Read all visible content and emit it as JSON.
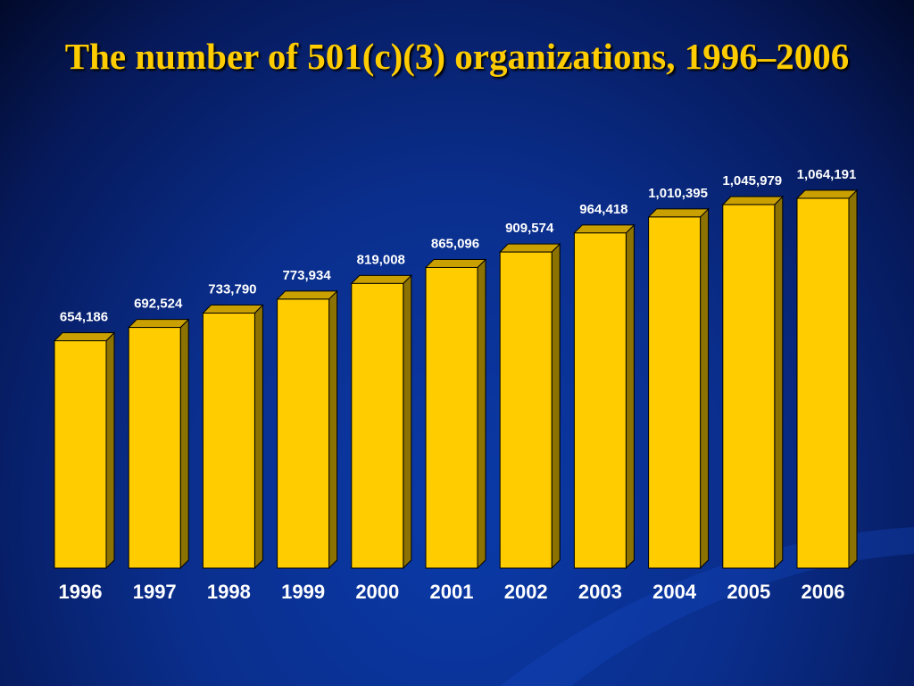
{
  "chart_data": {
    "type": "bar",
    "title": "The number of 501(c)(3) organizations, 1996–2006",
    "categories": [
      "1996",
      "1997",
      "1998",
      "1999",
      "2000",
      "2001",
      "2002",
      "2003",
      "2004",
      "2005",
      "2006"
    ],
    "values": [
      654186,
      692524,
      733790,
      773934,
      819008,
      865096,
      909574,
      964418,
      1010395,
      1045979,
      1064191
    ],
    "value_labels": [
      "654,186",
      "692,524",
      "733,790",
      "773,934",
      "819,008",
      "865,096",
      "909,574",
      "964,418",
      "1,010,395",
      "1,045,979",
      "1,064,191"
    ],
    "color": "#ffcc00"
  }
}
